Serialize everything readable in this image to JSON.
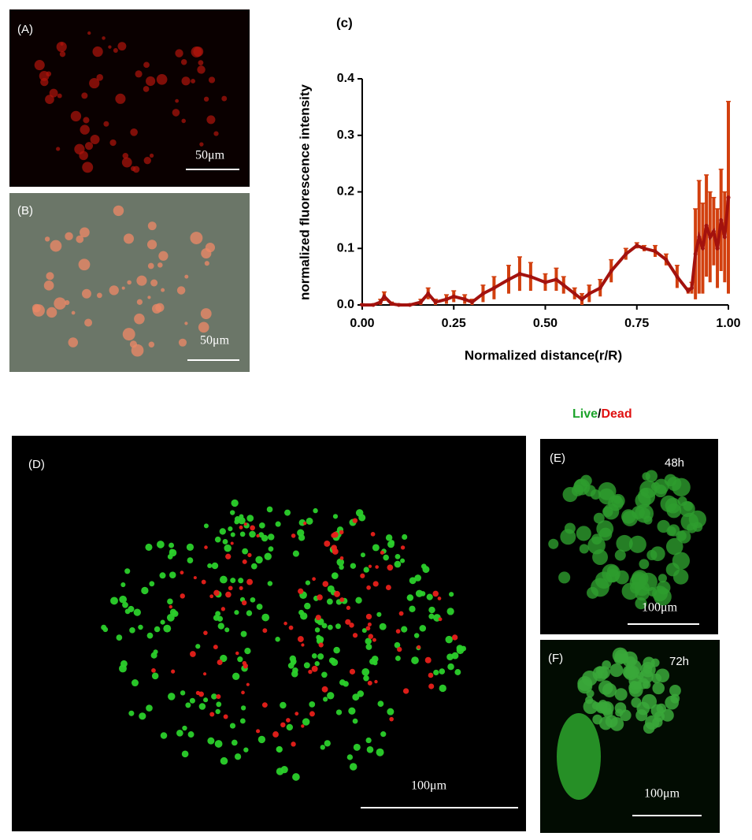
{
  "panels": {
    "a": {
      "label": "(A)",
      "scale": "50μm"
    },
    "b": {
      "label": "(B)",
      "scale": "50μm"
    },
    "d": {
      "label": "(D)",
      "scale": "100μm"
    },
    "e": {
      "label": "(E)",
      "time": "48h",
      "scale": "100μm"
    },
    "f": {
      "label": "(F)",
      "time": "72h",
      "scale": "100μm"
    },
    "legend": {
      "live": "Live",
      "sep": "/",
      "dead": "Dead"
    }
  },
  "chart_data": {
    "type": "line",
    "title": "(c)",
    "x_label": "Normalized distance(r/R)",
    "y_label": "normalized fluorescence intensity",
    "x": [
      0,
      0.03,
      0.05,
      0.06,
      0.08,
      0.1,
      0.13,
      0.16,
      0.18,
      0.2,
      0.23,
      0.25,
      0.28,
      0.3,
      0.33,
      0.36,
      0.4,
      0.43,
      0.46,
      0.5,
      0.53,
      0.55,
      0.58,
      0.6,
      0.62,
      0.65,
      0.68,
      0.72,
      0.75,
      0.77,
      0.8,
      0.83,
      0.86,
      0.89,
      0.9,
      0.91,
      0.92,
      0.93,
      0.94,
      0.95,
      0.96,
      0.97,
      0.98,
      0.99,
      1.0
    ],
    "series": [
      {
        "name": "intensity",
        "color": "#a3120e",
        "error_color": "#d2400f",
        "values": [
          0,
          0,
          0.005,
          0.015,
          0.002,
          0,
          0,
          0.005,
          0.02,
          0.005,
          0.01,
          0.015,
          0.01,
          0.005,
          0.02,
          0.03,
          0.045,
          0.055,
          0.05,
          0.04,
          0.045,
          0.035,
          0.02,
          0.01,
          0.02,
          0.03,
          0.06,
          0.09,
          0.105,
          0.1,
          0.095,
          0.08,
          0.05,
          0.025,
          0.03,
          0.09,
          0.12,
          0.1,
          0.14,
          0.12,
          0.13,
          0.1,
          0.15,
          0.12,
          0.19
        ],
        "errors": [
          0.002,
          0.002,
          0.005,
          0.008,
          0.003,
          0.002,
          0.002,
          0.005,
          0.01,
          0.005,
          0.008,
          0.01,
          0.008,
          0.005,
          0.015,
          0.02,
          0.025,
          0.03,
          0.025,
          0.015,
          0.02,
          0.015,
          0.01,
          0.01,
          0.015,
          0.015,
          0.02,
          0.01,
          0.005,
          0.005,
          0.01,
          0.01,
          0.02,
          0.005,
          0.01,
          0.08,
          0.1,
          0.08,
          0.09,
          0.08,
          0.06,
          0.07,
          0.09,
          0.08,
          0.17
        ]
      }
    ],
    "xlim": [
      0,
      1
    ],
    "ylim": [
      0,
      0.4
    ],
    "xticks": [
      {
        "value": 0,
        "label": "0.00"
      },
      {
        "value": 0.25,
        "label": "0.25"
      },
      {
        "value": 0.5,
        "label": "0.50"
      },
      {
        "value": 0.75,
        "label": "0.75"
      },
      {
        "value": 1,
        "label": "1.00"
      }
    ],
    "yticks": [
      {
        "value": 0,
        "label": "0.0"
      },
      {
        "value": 0.1,
        "label": "0.1"
      },
      {
        "value": 0.2,
        "label": "0.2"
      },
      {
        "value": 0.3,
        "label": "0.3"
      },
      {
        "value": 0.4,
        "label": "0.4"
      }
    ]
  }
}
